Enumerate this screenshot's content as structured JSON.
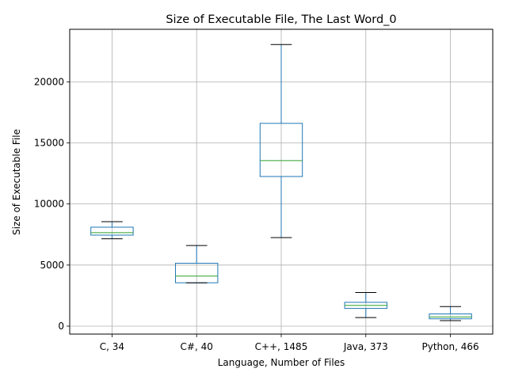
{
  "chart_data": {
    "type": "box",
    "title": "Size of Executable File, The Last Word_0",
    "xlabel": "Language, Number of Files",
    "ylabel": "Size of Executable File",
    "ylim": [
      -650,
      24300
    ],
    "yticks": [
      0,
      5000,
      10000,
      15000,
      20000
    ],
    "ytick_labels": [
      "0",
      "5000",
      "10000",
      "15000",
      "20000"
    ],
    "grid": true,
    "colors": {
      "box": "#1f77b4",
      "median": "#2ca02c",
      "whisker_cap": "#000000",
      "grid": "#b0b0b0"
    },
    "categories": [
      "C, 34",
      "C#, 40",
      "C++, 1485",
      "Java, 373",
      "Python, 466"
    ],
    "boxes": [
      {
        "whisker_low": 7150,
        "q1": 7450,
        "median": 7650,
        "q3": 8100,
        "whisker_high": 8550
      },
      {
        "whisker_low": 3550,
        "q1": 3550,
        "median": 4100,
        "q3": 5150,
        "whisker_high": 6600
      },
      {
        "whisker_low": 7250,
        "q1": 12250,
        "median": 13550,
        "q3": 16600,
        "whisker_high": 23050
      },
      {
        "whisker_low": 700,
        "q1": 1450,
        "median": 1700,
        "q3": 1950,
        "whisker_high": 2750
      },
      {
        "whisker_low": 450,
        "q1": 600,
        "median": 750,
        "q3": 1000,
        "whisker_high": 1600
      }
    ]
  }
}
